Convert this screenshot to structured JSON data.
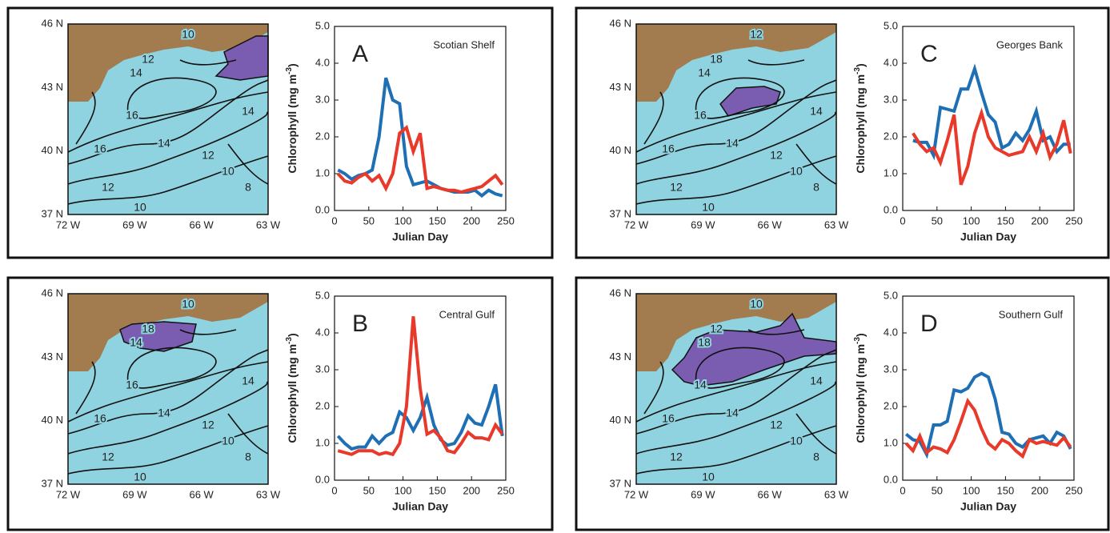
{
  "chart_data": [
    {
      "type": "line",
      "panel_label": "A",
      "title": "Scotian Shelf",
      "ylabel": "Chlorophyll (mg m",
      "ylabel_exponent": "-3",
      "ylabel_end": ")",
      "xlabel": "Julian Day",
      "x": [
        5,
        15,
        25,
        35,
        45,
        55,
        65,
        75,
        85,
        95,
        105,
        115,
        125,
        135,
        145,
        155,
        165,
        175,
        185,
        195,
        205,
        215,
        225,
        235,
        245
      ],
      "series": [
        {
          "color": "#1f6fb5",
          "values": [
            1.1,
            1.0,
            0.85,
            0.95,
            1.0,
            1.1,
            2.0,
            3.6,
            3.0,
            2.9,
            1.2,
            0.7,
            0.75,
            0.8,
            0.7,
            0.6,
            0.55,
            0.5,
            0.5,
            0.5,
            0.55,
            0.4,
            0.55,
            0.45,
            0.4
          ]
        },
        {
          "color": "#e8392a",
          "values": [
            1.0,
            0.8,
            0.75,
            0.9,
            1.0,
            0.8,
            0.95,
            0.6,
            1.0,
            2.1,
            2.25,
            1.6,
            2.1,
            0.6,
            0.65,
            0.6,
            0.55,
            0.55,
            0.5,
            0.55,
            0.6,
            0.65,
            0.8,
            0.95,
            0.7
          ]
        }
      ],
      "xlim": [
        0,
        250
      ],
      "ylim": [
        0,
        5
      ],
      "xticks": [
        0,
        50,
        100,
        150,
        200,
        250
      ],
      "yticks": [
        {
          "value": 0,
          "label": "0.0"
        },
        {
          "value": 1,
          "label": "1.0"
        },
        {
          "value": 2,
          "label": "2.0"
        },
        {
          "value": 3,
          "label": "3.0"
        },
        {
          "value": 4,
          "label": "4.0"
        },
        {
          "value": 5,
          "label": "5.0"
        }
      ]
    },
    {
      "type": "line",
      "panel_label": "B",
      "title": "Central Gulf",
      "ylabel": "Chlorophyll (mg m",
      "ylabel_exponent": "-3",
      "ylabel_end": ")",
      "xlabel": "Julian Day",
      "x": [
        5,
        15,
        25,
        35,
        45,
        55,
        65,
        75,
        85,
        95,
        105,
        115,
        125,
        135,
        145,
        155,
        165,
        175,
        185,
        195,
        205,
        215,
        225,
        235,
        245
      ],
      "series": [
        {
          "color": "#1f6fb5",
          "values": [
            1.2,
            1.0,
            0.85,
            0.9,
            0.9,
            1.2,
            1.0,
            1.2,
            1.3,
            1.85,
            1.7,
            1.35,
            1.7,
            2.25,
            1.5,
            1.1,
            0.95,
            1.0,
            1.3,
            1.75,
            1.55,
            1.5,
            2.0,
            2.6,
            1.2
          ]
        },
        {
          "color": "#e8392a",
          "values": [
            0.8,
            0.75,
            0.7,
            0.8,
            0.8,
            0.8,
            0.7,
            0.75,
            0.7,
            1.0,
            2.0,
            4.45,
            2.5,
            1.25,
            1.35,
            1.15,
            0.8,
            0.75,
            1.0,
            1.3,
            1.15,
            1.15,
            1.1,
            1.5,
            1.25
          ]
        }
      ],
      "xlim": [
        0,
        250
      ],
      "ylim": [
        0,
        5
      ],
      "xticks": [
        0,
        50,
        100,
        150,
        200,
        250
      ],
      "yticks": [
        {
          "value": 0,
          "label": "0.0"
        },
        {
          "value": 1,
          "label": "1.0"
        },
        {
          "value": 2,
          "label": "2.0"
        },
        {
          "value": 3,
          "label": "3.0"
        },
        {
          "value": 4,
          "label": "4.0"
        },
        {
          "value": 5,
          "label": "5.0"
        }
      ]
    },
    {
      "type": "line",
      "panel_label": "C",
      "title": "Georges Bank",
      "ylabel": "Chlorophyll (mg m",
      "ylabel_exponent": "-3",
      "ylabel_end": ")",
      "xlabel": "Julian Day",
      "x": [
        15,
        25,
        35,
        45,
        55,
        65,
        75,
        85,
        95,
        105,
        115,
        125,
        135,
        145,
        155,
        165,
        175,
        185,
        195,
        205,
        215,
        225,
        235,
        245
      ],
      "series": [
        {
          "color": "#1f6fb5",
          "values": [
            1.9,
            1.85,
            1.85,
            1.5,
            2.8,
            2.75,
            2.7,
            3.3,
            3.3,
            3.85,
            3.2,
            2.6,
            2.4,
            1.7,
            1.8,
            2.1,
            1.9,
            2.2,
            2.7,
            1.9,
            2.0,
            1.6,
            1.8,
            1.8
          ]
        },
        {
          "color": "#e8392a",
          "values": [
            2.1,
            1.8,
            1.6,
            1.7,
            1.3,
            1.9,
            2.6,
            0.7,
            1.2,
            2.1,
            2.65,
            2.0,
            1.7,
            1.6,
            1.5,
            1.55,
            1.6,
            2.0,
            1.6,
            2.1,
            1.45,
            1.8,
            2.45,
            1.55
          ]
        }
      ],
      "xlim": [
        0,
        250
      ],
      "ylim": [
        0,
        5
      ],
      "xticks": [
        0,
        50,
        100,
        150,
        200,
        250
      ],
      "yticks": [
        {
          "value": 0,
          "label": "0.0"
        },
        {
          "value": 1,
          "label": "1.0"
        },
        {
          "value": 2,
          "label": "2.0"
        },
        {
          "value": 3,
          "label": "3.0"
        },
        {
          "value": 4,
          "label": "4.0"
        },
        {
          "value": 5,
          "label": "5.0"
        }
      ]
    },
    {
      "type": "line",
      "panel_label": "D",
      "title": "Southern Gulf",
      "ylabel": "Chlorophyll (mg m",
      "ylabel_exponent": "-3",
      "ylabel_end": ")",
      "xlabel": "Julian Day",
      "x": [
        5,
        15,
        25,
        35,
        45,
        55,
        65,
        75,
        85,
        95,
        105,
        115,
        125,
        135,
        145,
        155,
        165,
        175,
        185,
        195,
        205,
        215,
        225,
        235,
        245
      ],
      "series": [
        {
          "color": "#1f6fb5",
          "values": [
            1.25,
            1.1,
            1.05,
            0.7,
            1.5,
            1.5,
            1.6,
            2.45,
            2.4,
            2.5,
            2.8,
            2.9,
            2.8,
            2.2,
            1.3,
            1.25,
            1.0,
            0.9,
            1.1,
            1.15,
            1.2,
            1.0,
            1.3,
            1.2,
            0.85
          ]
        },
        {
          "color": "#e8392a",
          "values": [
            1.0,
            0.8,
            1.2,
            0.75,
            0.9,
            0.85,
            0.75,
            1.1,
            1.6,
            2.15,
            1.9,
            1.4,
            1.0,
            0.85,
            1.1,
            1.0,
            0.8,
            0.65,
            1.1,
            1.0,
            1.05,
            1.0,
            0.95,
            1.15,
            0.9
          ]
        }
      ],
      "xlim": [
        0,
        250
      ],
      "ylim": [
        0,
        5
      ],
      "xticks": [
        0,
        50,
        100,
        150,
        200,
        250
      ],
      "yticks": [
        {
          "value": 0,
          "label": "0.0"
        },
        {
          "value": 1,
          "label": "1.0"
        },
        {
          "value": 2,
          "label": "2.0"
        },
        {
          "value": 3,
          "label": "3.0"
        },
        {
          "value": 4,
          "label": "4.0"
        },
        {
          "value": 5,
          "label": "5.0"
        }
      ]
    }
  ],
  "maps": [
    {
      "lat_labels": [
        "46 N",
        "43 N",
        "40 N",
        "37 N"
      ],
      "lon_labels": [
        "72 W",
        "69 W",
        "66 W",
        "63 W"
      ],
      "contour_labels": [
        "10",
        "12",
        "14",
        "16",
        "16",
        "14",
        "12",
        "14",
        "10",
        "8",
        "12",
        "10"
      ]
    },
    {
      "lat_labels": [
        "46 N",
        "43 N",
        "40 N",
        "37 N"
      ],
      "lon_labels": [
        "72 W",
        "69 W",
        "66 W",
        "63 W"
      ],
      "contour_labels": [
        "10",
        "18",
        "14",
        "16",
        "16",
        "14",
        "12",
        "14",
        "10",
        "8",
        "12",
        "10"
      ]
    },
    {
      "lat_labels": [
        "46 N",
        "43 N",
        "40 N",
        "37 N"
      ],
      "lon_labels": [
        "72 W",
        "69 W",
        "66 W",
        "63 W"
      ],
      "contour_labels": [
        "12",
        "18",
        "14",
        "16",
        "16",
        "14",
        "12",
        "14",
        "10",
        "8",
        "12",
        "10"
      ]
    },
    {
      "lat_labels": [
        "46 N",
        "43 N",
        "40 N",
        "37 N"
      ],
      "lon_labels": [
        "72 W",
        "69 W",
        "66 W",
        "63 W"
      ],
      "contour_labels": [
        "10",
        "12",
        "18",
        "14",
        "16",
        "14",
        "12",
        "14",
        "10",
        "8",
        "12",
        "10"
      ]
    }
  ]
}
